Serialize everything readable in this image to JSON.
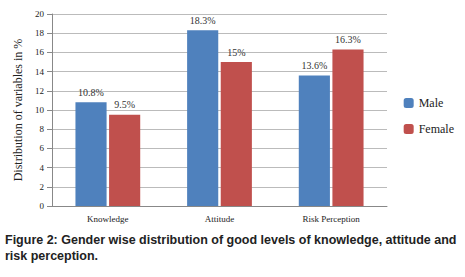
{
  "chart_data": {
    "type": "bar",
    "caption": "Figure 2:  Gender wise distribution of good levels of knowledge, attitude and risk perception.",
    "y_label": "Distribution of variables in %",
    "categories": [
      "Knowledge",
      "Attitude",
      "Risk Perception"
    ],
    "series": [
      {
        "name": "Male",
        "color": "#4f81bd",
        "values": [
          10.8,
          18.3,
          13.6
        ],
        "value_labels": [
          "10.8%",
          "18.3%",
          "13.6%"
        ]
      },
      {
        "name": "Female",
        "color": "#c0504d",
        "values": [
          9.5,
          15,
          16.3
        ],
        "value_labels": [
          "9.5%",
          "15%",
          "16.3%"
        ]
      }
    ],
    "ylim": [
      0,
      20
    ],
    "yticks": [
      0,
      2,
      4,
      6,
      8,
      10,
      12,
      14,
      16,
      18,
      20
    ],
    "grid": true,
    "legend": "right",
    "data_labels": true
  }
}
